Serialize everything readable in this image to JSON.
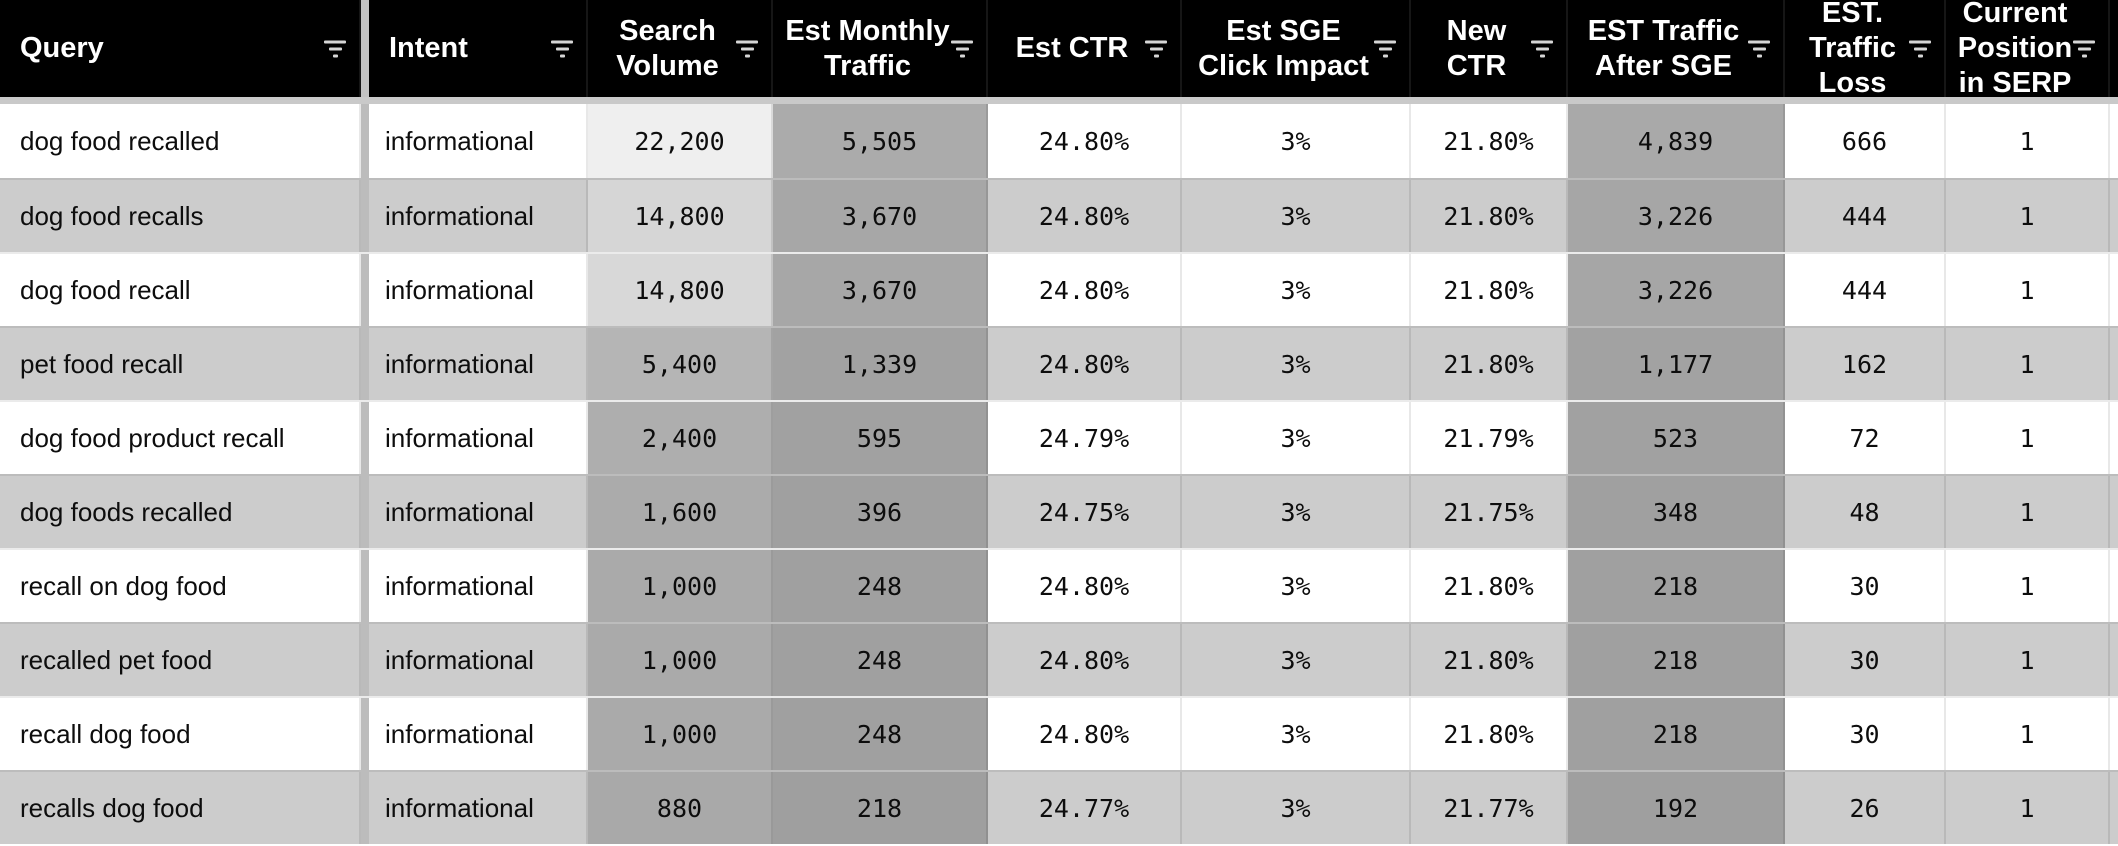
{
  "table": {
    "columns": [
      {
        "id": "query",
        "label": "Query"
      },
      {
        "id": "intent",
        "label": "Intent"
      },
      {
        "id": "search_volume",
        "label": "Search Volume"
      },
      {
        "id": "est_monthly_traffic",
        "label": "Est Monthly Traffic"
      },
      {
        "id": "est_ctr",
        "label": "Est CTR"
      },
      {
        "id": "est_sge_click_impact",
        "label": "Est SGE Click Impact"
      },
      {
        "id": "new_ctr",
        "label": "New CTR"
      },
      {
        "id": "est_traffic_after_sge",
        "label": "EST Traffic After SGE"
      },
      {
        "id": "est_traffic_loss",
        "label": "EST. Traffic Loss"
      },
      {
        "id": "current_position_in_serp",
        "label": "Current Position in SERP"
      }
    ],
    "rows": [
      {
        "query": "dog food recalled",
        "intent": "informational",
        "search_volume": "22,200",
        "est_monthly_traffic": "5,505",
        "est_ctr": "24.80%",
        "est_sge_click_impact": "3%",
        "new_ctr": "21.80%",
        "est_traffic_after_sge": "4,839",
        "est_traffic_loss": "666",
        "current_position_in_serp": "1",
        "shading": {
          "search_volume": "#efefef",
          "est_monthly_traffic": "#ababab",
          "est_traffic_after_sge": "#a9a9a9"
        }
      },
      {
        "query": "dog food recalls",
        "intent": "informational",
        "search_volume": "14,800",
        "est_monthly_traffic": "3,670",
        "est_ctr": "24.80%",
        "est_sge_click_impact": "3%",
        "new_ctr": "21.80%",
        "est_traffic_after_sge": "3,226",
        "est_traffic_loss": "444",
        "current_position_in_serp": "1",
        "shading": {
          "search_volume": "#d6d6d6",
          "est_monthly_traffic": "#a7a7a7",
          "est_traffic_after_sge": "#a6a6a6"
        }
      },
      {
        "query": "dog food recall",
        "intent": "informational",
        "search_volume": "14,800",
        "est_monthly_traffic": "3,670",
        "est_ctr": "24.80%",
        "est_sge_click_impact": "3%",
        "new_ctr": "21.80%",
        "est_traffic_after_sge": "3,226",
        "est_traffic_loss": "444",
        "current_position_in_serp": "1",
        "shading": {
          "search_volume": "#d8d8d8",
          "est_monthly_traffic": "#a7a7a7",
          "est_traffic_after_sge": "#a6a6a6"
        }
      },
      {
        "query": "pet food recall",
        "intent": "informational",
        "search_volume": "5,400",
        "est_monthly_traffic": "1,339",
        "est_ctr": "24.80%",
        "est_sge_click_impact": "3%",
        "new_ctr": "21.80%",
        "est_traffic_after_sge": "1,177",
        "est_traffic_loss": "162",
        "current_position_in_serp": "1",
        "shading": {
          "search_volume": "#b5b5b5",
          "est_monthly_traffic": "#a2a2a2",
          "est_traffic_after_sge": "#a2a2a2"
        }
      },
      {
        "query": "dog food product recall",
        "intent": "informational",
        "search_volume": "2,400",
        "est_monthly_traffic": "595",
        "est_ctr": "24.79%",
        "est_sge_click_impact": "3%",
        "new_ctr": "21.79%",
        "est_traffic_after_sge": "523",
        "est_traffic_loss": "72",
        "current_position_in_serp": "1",
        "shading": {
          "search_volume": "#aeaeae",
          "est_monthly_traffic": "#a1a1a1",
          "est_traffic_after_sge": "#a1a1a1"
        }
      },
      {
        "query": "dog foods recalled",
        "intent": "informational",
        "search_volume": "1,600",
        "est_monthly_traffic": "396",
        "est_ctr": "24.75%",
        "est_sge_click_impact": "3%",
        "new_ctr": "21.75%",
        "est_traffic_after_sge": "348",
        "est_traffic_loss": "48",
        "current_position_in_serp": "1",
        "shading": {
          "search_volume": "#ababab",
          "est_monthly_traffic": "#a0a0a0",
          "est_traffic_after_sge": "#a0a0a0"
        }
      },
      {
        "query": "recall on dog food",
        "intent": "informational",
        "search_volume": "1,000",
        "est_monthly_traffic": "248",
        "est_ctr": "24.80%",
        "est_sge_click_impact": "3%",
        "new_ctr": "21.80%",
        "est_traffic_after_sge": "218",
        "est_traffic_loss": "30",
        "current_position_in_serp": "1",
        "shading": {
          "search_volume": "#aaaaaa",
          "est_monthly_traffic": "#a0a0a0",
          "est_traffic_after_sge": "#a0a0a0"
        }
      },
      {
        "query": "recalled pet food",
        "intent": "informational",
        "search_volume": "1,000",
        "est_monthly_traffic": "248",
        "est_ctr": "24.80%",
        "est_sge_click_impact": "3%",
        "new_ctr": "21.80%",
        "est_traffic_after_sge": "218",
        "est_traffic_loss": "30",
        "current_position_in_serp": "1",
        "shading": {
          "search_volume": "#aaaaaa",
          "est_monthly_traffic": "#a0a0a0",
          "est_traffic_after_sge": "#a0a0a0"
        }
      },
      {
        "query": "recall dog food",
        "intent": "informational",
        "search_volume": "1,000",
        "est_monthly_traffic": "248",
        "est_ctr": "24.80%",
        "est_sge_click_impact": "3%",
        "new_ctr": "21.80%",
        "est_traffic_after_sge": "218",
        "est_traffic_loss": "30",
        "current_position_in_serp": "1",
        "shading": {
          "search_volume": "#aaaaaa",
          "est_monthly_traffic": "#a0a0a0",
          "est_traffic_after_sge": "#a0a0a0"
        }
      },
      {
        "query": "recalls dog food",
        "intent": "informational",
        "search_volume": "880",
        "est_monthly_traffic": "218",
        "est_ctr": "24.77%",
        "est_sge_click_impact": "3%",
        "new_ctr": "21.77%",
        "est_traffic_after_sge": "192",
        "est_traffic_loss": "26",
        "current_position_in_serp": "1",
        "shading": {
          "search_volume": "#a9a9a9",
          "est_monthly_traffic": "#9f9f9f",
          "est_traffic_after_sge": "#9f9f9f"
        }
      }
    ],
    "icons": {
      "header_filter": "filter-lines-icon"
    },
    "colors": {
      "header_bg": "#000000",
      "header_text": "#ffffff",
      "row_white": "#ffffff",
      "row_stripe_gray": "#cccccc",
      "pane_divider_gray": "#bcbcbc",
      "frozen_strip_gray": "#c9c9c9"
    }
  }
}
